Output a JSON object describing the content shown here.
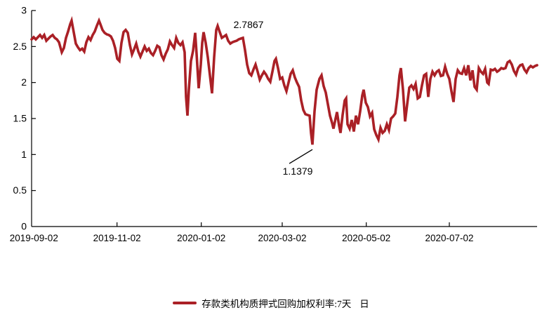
{
  "page": {
    "background": "#ffffff"
  },
  "chart_data": {
    "type": "line",
    "title": "",
    "xlabel": "",
    "ylabel": "",
    "grid": false,
    "line_color": "#AA2026",
    "axis_color": "#000000",
    "y_axis": {
      "min": 0,
      "max": 3,
      "tick_values": [
        0,
        0.5,
        1,
        1.5,
        2,
        2.5,
        3
      ],
      "tick_labels": [
        "0",
        "0.5",
        "1",
        "1.5",
        "2",
        "2.5",
        "3"
      ]
    },
    "x_axis": {
      "ticks": [
        {
          "label": "2019-09-02",
          "t": 0.0046
        },
        {
          "label": "2019-11-02",
          "t": 0.169
        },
        {
          "label": "2020-01-02",
          "t": 0.3357
        },
        {
          "label": "2020-03-02",
          "t": 0.4958
        },
        {
          "label": "2020-05-02",
          "t": 0.6621
        },
        {
          "label": "2020-07-02",
          "t": 0.8264
        }
      ]
    },
    "annotations": {
      "max": {
        "label": "2.7867",
        "value": 2.7867,
        "t": 0.3681
      },
      "min": {
        "label": "1.1379",
        "value": 1.1379,
        "t": 0.5556
      }
    },
    "legend": {
      "series_label": "存款类机构质押式回购加权利率:7天",
      "frequency_label": "日"
    },
    "series": [
      {
        "name": "存款类机构质押式回购加权利率:7天",
        "frequency": "日",
        "color": "#AA2026",
        "points": [
          [
            0,
            2.6
          ],
          [
            0.0042,
            2.63
          ],
          [
            0.0083,
            2.6
          ],
          [
            0.0125,
            2.63
          ],
          [
            0.0167,
            2.66
          ],
          [
            0.0208,
            2.62
          ],
          [
            0.025,
            2.66
          ],
          [
            0.0292,
            2.58
          ],
          [
            0.0333,
            2.61
          ],
          [
            0.0375,
            2.64
          ],
          [
            0.0417,
            2.66
          ],
          [
            0.0458,
            2.62
          ],
          [
            0.05,
            2.6
          ],
          [
            0.0542,
            2.56
          ],
          [
            0.0597,
            2.42
          ],
          [
            0.0639,
            2.48
          ],
          [
            0.0681,
            2.62
          ],
          [
            0.0722,
            2.71
          ],
          [
            0.0764,
            2.81
          ],
          [
            0.0792,
            2.86
          ],
          [
            0.0833,
            2.7
          ],
          [
            0.0875,
            2.54
          ],
          [
            0.0917,
            2.49
          ],
          [
            0.0958,
            2.45
          ],
          [
            0.1,
            2.47
          ],
          [
            0.1042,
            2.43
          ],
          [
            0.1083,
            2.56
          ],
          [
            0.1125,
            2.63
          ],
          [
            0.1167,
            2.59
          ],
          [
            0.1208,
            2.66
          ],
          [
            0.125,
            2.71
          ],
          [
            0.1292,
            2.79
          ],
          [
            0.1333,
            2.86
          ],
          [
            0.1361,
            2.81
          ],
          [
            0.1403,
            2.73
          ],
          [
            0.1444,
            2.69
          ],
          [
            0.1486,
            2.67
          ],
          [
            0.1528,
            2.66
          ],
          [
            0.1569,
            2.64
          ],
          [
            0.1611,
            2.58
          ],
          [
            0.1653,
            2.48
          ],
          [
            0.1694,
            2.33
          ],
          [
            0.1736,
            2.3
          ],
          [
            0.1778,
            2.55
          ],
          [
            0.1819,
            2.7
          ],
          [
            0.1861,
            2.73
          ],
          [
            0.1903,
            2.69
          ],
          [
            0.1944,
            2.52
          ],
          [
            0.1986,
            2.39
          ],
          [
            0.2028,
            2.46
          ],
          [
            0.2069,
            2.54
          ],
          [
            0.2111,
            2.43
          ],
          [
            0.2153,
            2.36
          ],
          [
            0.2194,
            2.43
          ],
          [
            0.2236,
            2.5
          ],
          [
            0.2278,
            2.44
          ],
          [
            0.2319,
            2.47
          ],
          [
            0.2361,
            2.41
          ],
          [
            0.2403,
            2.38
          ],
          [
            0.2444,
            2.44
          ],
          [
            0.2486,
            2.51
          ],
          [
            0.2528,
            2.49
          ],
          [
            0.2569,
            2.38
          ],
          [
            0.2611,
            2.32
          ],
          [
            0.2653,
            2.4
          ],
          [
            0.2694,
            2.46
          ],
          [
            0.2736,
            2.57
          ],
          [
            0.2778,
            2.52
          ],
          [
            0.2819,
            2.48
          ],
          [
            0.2861,
            2.62
          ],
          [
            0.2903,
            2.55
          ],
          [
            0.2944,
            2.52
          ],
          [
            0.2986,
            2.56
          ],
          [
            0.3028,
            2.42
          ],
          [
            0.3056,
            1.8
          ],
          [
            0.3083,
            1.54
          ],
          [
            0.3111,
            1.9
          ],
          [
            0.3153,
            2.3
          ],
          [
            0.3194,
            2.44
          ],
          [
            0.3236,
            2.69
          ],
          [
            0.3264,
            2.4
          ],
          [
            0.3306,
            1.92
          ],
          [
            0.3347,
            2.25
          ],
          [
            0.3375,
            2.55
          ],
          [
            0.3403,
            2.7
          ],
          [
            0.3444,
            2.55
          ],
          [
            0.3486,
            2.35
          ],
          [
            0.3528,
            2.1
          ],
          [
            0.3569,
            1.85
          ],
          [
            0.3611,
            2.35
          ],
          [
            0.3653,
            2.73
          ],
          [
            0.3681,
            2.7867
          ],
          [
            0.3722,
            2.7
          ],
          [
            0.3764,
            2.62
          ],
          [
            0.3806,
            2.64
          ],
          [
            0.3847,
            2.66
          ],
          [
            0.3889,
            2.58
          ],
          [
            0.3931,
            2.54
          ],
          [
            0.3972,
            2.56
          ],
          [
            0.4014,
            2.57
          ],
          [
            0.4056,
            2.58
          ],
          [
            0.4097,
            2.6
          ],
          [
            0.4139,
            2.61
          ],
          [
            0.4181,
            2.62
          ],
          [
            0.4222,
            2.45
          ],
          [
            0.4264,
            2.25
          ],
          [
            0.4306,
            2.13
          ],
          [
            0.4347,
            2.1
          ],
          [
            0.4389,
            2.18
          ],
          [
            0.4431,
            2.25
          ],
          [
            0.4472,
            2.15
          ],
          [
            0.4514,
            2.04
          ],
          [
            0.4556,
            2.1
          ],
          [
            0.4597,
            2.15
          ],
          [
            0.4639,
            2.11
          ],
          [
            0.4681,
            2.05
          ],
          [
            0.4722,
            2.01
          ],
          [
            0.4764,
            2.15
          ],
          [
            0.4806,
            2.3
          ],
          [
            0.4833,
            2.33
          ],
          [
            0.4875,
            2.2
          ],
          [
            0.4917,
            2.05
          ],
          [
            0.4958,
            2.07
          ],
          [
            0.5,
            1.96
          ],
          [
            0.5042,
            1.88
          ],
          [
            0.5083,
            2.0
          ],
          [
            0.5125,
            2.12
          ],
          [
            0.5167,
            2.17
          ],
          [
            0.5208,
            2.07
          ],
          [
            0.525,
            2.0
          ],
          [
            0.5292,
            1.94
          ],
          [
            0.5333,
            1.75
          ],
          [
            0.5375,
            1.62
          ],
          [
            0.5417,
            1.56
          ],
          [
            0.5458,
            1.55
          ],
          [
            0.55,
            1.54
          ],
          [
            0.5528,
            1.3
          ],
          [
            0.5556,
            1.1379
          ],
          [
            0.5597,
            1.6
          ],
          [
            0.5639,
            1.9
          ],
          [
            0.5694,
            2.05
          ],
          [
            0.5736,
            2.1
          ],
          [
            0.5778,
            1.95
          ],
          [
            0.5819,
            1.86
          ],
          [
            0.5861,
            1.7
          ],
          [
            0.5903,
            1.54
          ],
          [
            0.5944,
            1.44
          ],
          [
            0.5972,
            1.36
          ],
          [
            0.6014,
            1.5
          ],
          [
            0.6042,
            1.59
          ],
          [
            0.6083,
            1.4
          ],
          [
            0.6111,
            1.3
          ],
          [
            0.6153,
            1.55
          ],
          [
            0.6194,
            1.75
          ],
          [
            0.6222,
            1.78
          ],
          [
            0.625,
            1.42
          ],
          [
            0.6292,
            1.36
          ],
          [
            0.6333,
            1.48
          ],
          [
            0.6375,
            1.32
          ],
          [
            0.6417,
            1.54
          ],
          [
            0.6458,
            1.42
          ],
          [
            0.65,
            1.6
          ],
          [
            0.6542,
            1.82
          ],
          [
            0.6569,
            1.9
          ],
          [
            0.6611,
            1.72
          ],
          [
            0.6653,
            1.66
          ],
          [
            0.6694,
            1.53
          ],
          [
            0.6736,
            1.58
          ],
          [
            0.6778,
            1.35
          ],
          [
            0.6819,
            1.27
          ],
          [
            0.6861,
            1.21
          ],
          [
            0.6903,
            1.37
          ],
          [
            0.6944,
            1.3
          ],
          [
            0.6986,
            1.33
          ],
          [
            0.7028,
            1.42
          ],
          [
            0.7069,
            1.34
          ],
          [
            0.7111,
            1.5
          ],
          [
            0.7153,
            1.53
          ],
          [
            0.7194,
            1.57
          ],
          [
            0.7236,
            1.8
          ],
          [
            0.7278,
            2.1
          ],
          [
            0.7306,
            2.2
          ],
          [
            0.7347,
            1.9
          ],
          [
            0.7389,
            1.46
          ],
          [
            0.7431,
            1.7
          ],
          [
            0.7472,
            1.93
          ],
          [
            0.7514,
            1.96
          ],
          [
            0.7556,
            1.91
          ],
          [
            0.7597,
            1.98
          ],
          [
            0.7639,
            1.78
          ],
          [
            0.7681,
            1.8
          ],
          [
            0.7722,
            1.96
          ],
          [
            0.7764,
            2.1
          ],
          [
            0.7806,
            2.12
          ],
          [
            0.7847,
            1.8
          ],
          [
            0.7889,
            2.05
          ],
          [
            0.7931,
            2.15
          ],
          [
            0.7972,
            2.1
          ],
          [
            0.8014,
            2.15
          ],
          [
            0.8056,
            2.17
          ],
          [
            0.8097,
            2.09
          ],
          [
            0.8139,
            2.1
          ],
          [
            0.8181,
            2.22
          ],
          [
            0.8222,
            2.12
          ],
          [
            0.8264,
            2.05
          ],
          [
            0.8306,
            1.88
          ],
          [
            0.8347,
            1.73
          ],
          [
            0.8389,
            2.05
          ],
          [
            0.8431,
            2.17
          ],
          [
            0.8472,
            2.13
          ],
          [
            0.8514,
            2.12
          ],
          [
            0.8556,
            2.2
          ],
          [
            0.8597,
            2.1
          ],
          [
            0.8639,
            2.24
          ],
          [
            0.8681,
            2.03
          ],
          [
            0.8722,
            2.17
          ],
          [
            0.8764,
            1.94
          ],
          [
            0.8806,
            1.9
          ],
          [
            0.8847,
            2.2
          ],
          [
            0.8889,
            2.15
          ],
          [
            0.8931,
            2.12
          ],
          [
            0.8972,
            2.19
          ],
          [
            0.9014,
            2.0
          ],
          [
            0.9042,
            1.98
          ],
          [
            0.9083,
            2.18
          ],
          [
            0.9125,
            2.17
          ],
          [
            0.9167,
            2.19
          ],
          [
            0.9208,
            2.15
          ],
          [
            0.925,
            2.17
          ],
          [
            0.9292,
            2.2
          ],
          [
            0.9333,
            2.19
          ],
          [
            0.9375,
            2.2
          ],
          [
            0.9417,
            2.28
          ],
          [
            0.9458,
            2.3
          ],
          [
            0.95,
            2.25
          ],
          [
            0.9542,
            2.16
          ],
          [
            0.9583,
            2.11
          ],
          [
            0.9625,
            2.2
          ],
          [
            0.9667,
            2.24
          ],
          [
            0.9708,
            2.25
          ],
          [
            0.975,
            2.18
          ],
          [
            0.9792,
            2.14
          ],
          [
            0.9833,
            2.2
          ],
          [
            0.9875,
            2.23
          ],
          [
            0.9917,
            2.21
          ],
          [
            0.9958,
            2.23
          ],
          [
            1,
            2.24
          ]
        ]
      }
    ]
  }
}
